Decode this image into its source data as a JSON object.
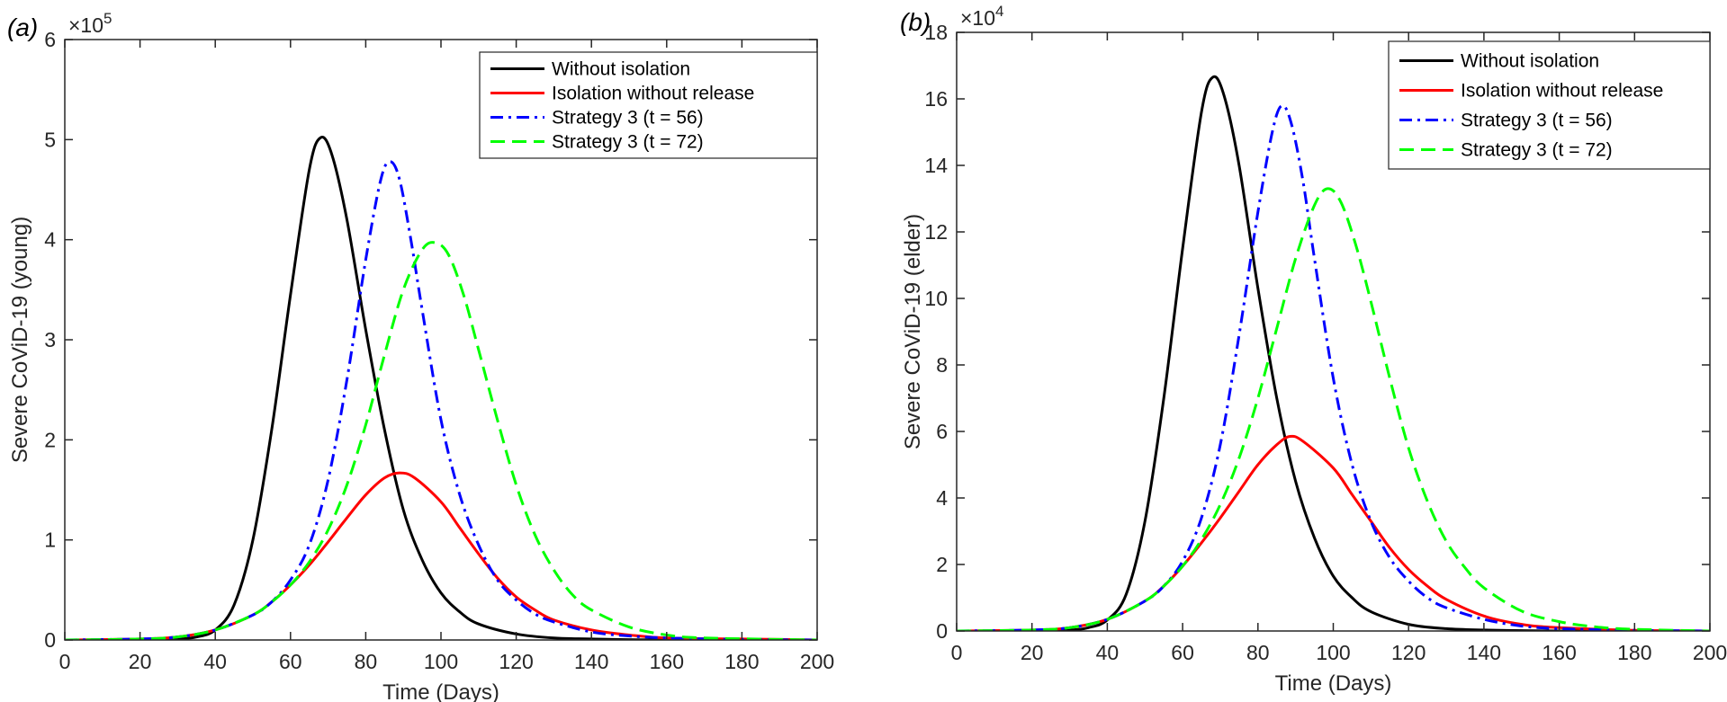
{
  "chart_data": [
    {
      "type": "line",
      "panel_label": "(a)",
      "xlabel": "Time (Days)",
      "ylabel": "Severe CoViD-19 (young)",
      "y_multiplier": "×10",
      "y_exponent": "5",
      "xlim": [
        0,
        200
      ],
      "ylim": [
        0,
        6
      ],
      "xticks": [
        0,
        20,
        40,
        60,
        80,
        100,
        120,
        140,
        160,
        180,
        200
      ],
      "yticks": [
        0,
        1,
        2,
        3,
        4,
        5,
        6
      ],
      "legend_position": "top-right",
      "series": [
        {
          "name": "Without isolation",
          "color": "#000000",
          "style": "solid",
          "points": [
            [
              0,
              0
            ],
            [
              20,
              0
            ],
            [
              30,
              0.01
            ],
            [
              35,
              0.03
            ],
            [
              40,
              0.1
            ],
            [
              45,
              0.35
            ],
            [
              50,
              1.0
            ],
            [
              55,
              2.1
            ],
            [
              60,
              3.45
            ],
            [
              65,
              4.7
            ],
            [
              68,
              5.02
            ],
            [
              71,
              4.85
            ],
            [
              75,
              4.2
            ],
            [
              80,
              3.1
            ],
            [
              85,
              2.1
            ],
            [
              90,
              1.3
            ],
            [
              95,
              0.8
            ],
            [
              100,
              0.47
            ],
            [
              105,
              0.28
            ],
            [
              110,
              0.16
            ],
            [
              120,
              0.06
            ],
            [
              130,
              0.02
            ],
            [
              140,
              0.01
            ],
            [
              160,
              0
            ],
            [
              200,
              0
            ]
          ]
        },
        {
          "name": "Isolation without release",
          "color": "#ff0000",
          "style": "solid",
          "points": [
            [
              0,
              0
            ],
            [
              20,
              0.01
            ],
            [
              30,
              0.03
            ],
            [
              40,
              0.1
            ],
            [
              50,
              0.25
            ],
            [
              55,
              0.38
            ],
            [
              60,
              0.55
            ],
            [
              65,
              0.75
            ],
            [
              70,
              0.98
            ],
            [
              75,
              1.22
            ],
            [
              80,
              1.45
            ],
            [
              85,
              1.62
            ],
            [
              89,
              1.67
            ],
            [
              93,
              1.62
            ],
            [
              100,
              1.38
            ],
            [
              105,
              1.12
            ],
            [
              110,
              0.86
            ],
            [
              115,
              0.62
            ],
            [
              120,
              0.43
            ],
            [
              125,
              0.3
            ],
            [
              130,
              0.2
            ],
            [
              140,
              0.1
            ],
            [
              150,
              0.05
            ],
            [
              160,
              0.02
            ],
            [
              180,
              0.01
            ],
            [
              200,
              0
            ]
          ]
        },
        {
          "name": "Strategy 3 (t = 56)",
          "color": "#0000ff",
          "style": "dashdot",
          "points": [
            [
              0,
              0
            ],
            [
              20,
              0.01
            ],
            [
              30,
              0.03
            ],
            [
              40,
              0.1
            ],
            [
              50,
              0.25
            ],
            [
              55,
              0.38
            ],
            [
              60,
              0.6
            ],
            [
              65,
              0.95
            ],
            [
              70,
              1.6
            ],
            [
              75,
              2.6
            ],
            [
              80,
              3.8
            ],
            [
              84,
              4.6
            ],
            [
              86.5,
              4.78
            ],
            [
              89,
              4.6
            ],
            [
              92,
              4.0
            ],
            [
              95,
              3.3
            ],
            [
              100,
              2.2
            ],
            [
              105,
              1.45
            ],
            [
              110,
              0.95
            ],
            [
              115,
              0.6
            ],
            [
              120,
              0.4
            ],
            [
              125,
              0.26
            ],
            [
              130,
              0.18
            ],
            [
              140,
              0.08
            ],
            [
              150,
              0.04
            ],
            [
              160,
              0.02
            ],
            [
              180,
              0.005
            ],
            [
              200,
              0
            ]
          ]
        },
        {
          "name": "Strategy 3 (t = 72)",
          "color": "#00ff00",
          "style": "dashed",
          "points": [
            [
              0,
              0
            ],
            [
              20,
              0.01
            ],
            [
              30,
              0.03
            ],
            [
              40,
              0.1
            ],
            [
              50,
              0.25
            ],
            [
              55,
              0.38
            ],
            [
              60,
              0.55
            ],
            [
              65,
              0.78
            ],
            [
              70,
              1.1
            ],
            [
              75,
              1.55
            ],
            [
              80,
              2.15
            ],
            [
              85,
              2.85
            ],
            [
              90,
              3.5
            ],
            [
              95,
              3.9
            ],
            [
              98.5,
              3.97
            ],
            [
              102,
              3.85
            ],
            [
              106,
              3.45
            ],
            [
              110,
              2.9
            ],
            [
              115,
              2.2
            ],
            [
              120,
              1.55
            ],
            [
              125,
              1.05
            ],
            [
              130,
              0.7
            ],
            [
              135,
              0.45
            ],
            [
              140,
              0.3
            ],
            [
              150,
              0.13
            ],
            [
              160,
              0.05
            ],
            [
              170,
              0.02
            ],
            [
              200,
              0
            ]
          ]
        }
      ]
    },
    {
      "type": "line",
      "panel_label": "(b)",
      "xlabel": "Time (Days)",
      "ylabel": "Severe CoViD-19 (elder)",
      "y_multiplier": "×10",
      "y_exponent": "4",
      "xlim": [
        0,
        200
      ],
      "ylim": [
        0,
        18
      ],
      "xticks": [
        0,
        20,
        40,
        60,
        80,
        100,
        120,
        140,
        160,
        180,
        200
      ],
      "yticks": [
        0,
        2,
        4,
        6,
        8,
        10,
        12,
        14,
        16,
        18
      ],
      "legend_position": "top-right",
      "series": [
        {
          "name": "Without isolation",
          "color": "#000000",
          "style": "solid",
          "points": [
            [
              0,
              0
            ],
            [
              20,
              0
            ],
            [
              30,
              0.03
            ],
            [
              35,
              0.1
            ],
            [
              40,
              0.33
            ],
            [
              45,
              1.1
            ],
            [
              50,
              3.3
            ],
            [
              55,
              7.0
            ],
            [
              60,
              11.5
            ],
            [
              65,
              15.6
            ],
            [
              68,
              16.65
            ],
            [
              71,
              16.1
            ],
            [
              75,
              14.0
            ],
            [
              80,
              10.3
            ],
            [
              85,
              7.0
            ],
            [
              90,
              4.5
            ],
            [
              95,
              2.8
            ],
            [
              100,
              1.65
            ],
            [
              105,
              1.0
            ],
            [
              110,
              0.58
            ],
            [
              120,
              0.2
            ],
            [
              130,
              0.07
            ],
            [
              140,
              0.03
            ],
            [
              160,
              0
            ],
            [
              200,
              0
            ]
          ]
        },
        {
          "name": "Isolation without release",
          "color": "#ff0000",
          "style": "solid",
          "points": [
            [
              0,
              0
            ],
            [
              20,
              0.03
            ],
            [
              30,
              0.1
            ],
            [
              40,
              0.35
            ],
            [
              50,
              0.9
            ],
            [
              55,
              1.35
            ],
            [
              60,
              1.95
            ],
            [
              65,
              2.65
            ],
            [
              70,
              3.4
            ],
            [
              75,
              4.2
            ],
            [
              80,
              5.0
            ],
            [
              85,
              5.6
            ],
            [
              88.5,
              5.85
            ],
            [
              92,
              5.7
            ],
            [
              100,
              4.9
            ],
            [
              105,
              4.1
            ],
            [
              110,
              3.3
            ],
            [
              115,
              2.5
            ],
            [
              120,
              1.85
            ],
            [
              125,
              1.35
            ],
            [
              130,
              0.95
            ],
            [
              140,
              0.45
            ],
            [
              150,
              0.2
            ],
            [
              160,
              0.1
            ],
            [
              180,
              0.02
            ],
            [
              200,
              0
            ]
          ]
        },
        {
          "name": "Strategy 3 (t = 56)",
          "color": "#0000ff",
          "style": "dashdot",
          "points": [
            [
              0,
              0
            ],
            [
              20,
              0.03
            ],
            [
              30,
              0.1
            ],
            [
              40,
              0.35
            ],
            [
              50,
              0.9
            ],
            [
              55,
              1.35
            ],
            [
              60,
              2.1
            ],
            [
              65,
              3.4
            ],
            [
              70,
              5.6
            ],
            [
              75,
              8.9
            ],
            [
              80,
              12.6
            ],
            [
              84,
              15.1
            ],
            [
              86.5,
              15.8
            ],
            [
              89,
              15.2
            ],
            [
              92,
              13.5
            ],
            [
              95,
              11.2
            ],
            [
              100,
              7.6
            ],
            [
              105,
              5.0
            ],
            [
              110,
              3.3
            ],
            [
              115,
              2.2
            ],
            [
              120,
              1.5
            ],
            [
              125,
              1.0
            ],
            [
              130,
              0.7
            ],
            [
              140,
              0.35
            ],
            [
              150,
              0.15
            ],
            [
              160,
              0.07
            ],
            [
              180,
              0.02
            ],
            [
              200,
              0
            ]
          ]
        },
        {
          "name": "Strategy 3 (t = 72)",
          "color": "#00ff00",
          "style": "dashed",
          "points": [
            [
              0,
              0
            ],
            [
              20,
              0.03
            ],
            [
              30,
              0.1
            ],
            [
              40,
              0.35
            ],
            [
              50,
              0.9
            ],
            [
              55,
              1.35
            ],
            [
              60,
              1.95
            ],
            [
              65,
              2.75
            ],
            [
              70,
              3.8
            ],
            [
              75,
              5.2
            ],
            [
              80,
              7.0
            ],
            [
              85,
              9.1
            ],
            [
              90,
              11.2
            ],
            [
              95,
              12.8
            ],
            [
              98.5,
              13.3
            ],
            [
              102,
              12.9
            ],
            [
              106,
              11.6
            ],
            [
              110,
              9.9
            ],
            [
              115,
              7.6
            ],
            [
              120,
              5.5
            ],
            [
              125,
              3.9
            ],
            [
              130,
              2.7
            ],
            [
              135,
              1.9
            ],
            [
              140,
              1.3
            ],
            [
              150,
              0.6
            ],
            [
              160,
              0.28
            ],
            [
              170,
              0.12
            ],
            [
              180,
              0.05
            ],
            [
              200,
              0
            ]
          ]
        }
      ]
    }
  ]
}
